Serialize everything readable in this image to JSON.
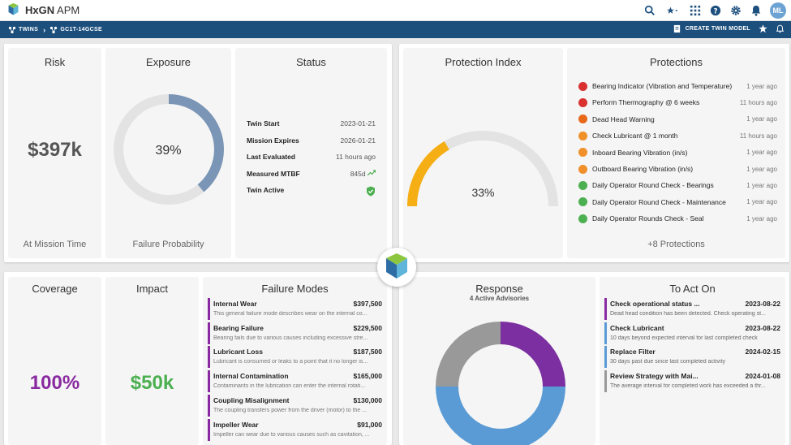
{
  "app": {
    "brand": "HxGN",
    "name": "APM"
  },
  "user": {
    "initials": "ML"
  },
  "breadcrumb": {
    "root": "TWINS",
    "current": "GC1T-14GCSE"
  },
  "nav": {
    "create_twin_model": "CREATE TWIN MODEL"
  },
  "risk": {
    "title": "Risk",
    "value": "$397k",
    "caption": "At Mission Time"
  },
  "exposure": {
    "title": "Exposure",
    "value": "39%",
    "fraction": 0.39,
    "caption": "Failure Probability"
  },
  "status": {
    "title": "Status",
    "rows": [
      {
        "key": "Twin Start",
        "value": "2023-01-21"
      },
      {
        "key": "Mission Expires",
        "value": "2026-01-21"
      },
      {
        "key": "Last Evaluated",
        "value": "11 hours ago"
      },
      {
        "key": "Measured MTBF",
        "value": "845d"
      },
      {
        "key": "Twin Active",
        "value": ""
      }
    ]
  },
  "protection_index": {
    "title": "Protection Index",
    "value": "33%",
    "fraction": 0.33
  },
  "protections": {
    "title": "Protections",
    "items": [
      {
        "name": "Bearing Indicator (Vibration and Temperature)",
        "time": "1 year ago",
        "color": "#d93030"
      },
      {
        "name": "Perform Thermography @ 6 weeks",
        "time": "11 hours ago",
        "color": "#d93030"
      },
      {
        "name": "Dead Head Warning",
        "time": "1 year ago",
        "color": "#e8681a"
      },
      {
        "name": "Check Lubricant @ 1 month",
        "time": "11 hours ago",
        "color": "#f0902a"
      },
      {
        "name": "Inboard Bearing Vibration (in/s)",
        "time": "1 year ago",
        "color": "#f0902a"
      },
      {
        "name": "Outboard Bearing Vibration (in/s)",
        "time": "1 year ago",
        "color": "#f0902a"
      },
      {
        "name": "Daily Operator Round Check - Bearings",
        "time": "1 year ago",
        "color": "#4caf50"
      },
      {
        "name": "Daily Operator Round Check - Maintenance",
        "time": "1 year ago",
        "color": "#4caf50"
      },
      {
        "name": "Daily Operator Rounds Check - Seal",
        "time": "1 year ago",
        "color": "#4caf50"
      }
    ],
    "more": "+8 Protections"
  },
  "coverage": {
    "title": "Coverage",
    "value": "100%"
  },
  "impact": {
    "title": "Impact",
    "value": "$50k"
  },
  "failure_modes": {
    "title": "Failure Modes",
    "items": [
      {
        "name": "Internal Wear",
        "amount": "$397,500",
        "desc": "This general failure mode describes wear on the internal co..."
      },
      {
        "name": "Bearing Failure",
        "amount": "$229,500",
        "desc": "Bearing fails due to various causes including excessive stre..."
      },
      {
        "name": "Lubricant Loss",
        "amount": "$187,500",
        "desc": "Lubricant is consumed or leaks to a point that it no longer is..."
      },
      {
        "name": "Internal Contamination",
        "amount": "$165,000",
        "desc": "Contaminants in the lubrication can enter the internal rotati..."
      },
      {
        "name": "Coupling Misalignment",
        "amount": "$130,000",
        "desc": "The coupling transfers power from the driver (motor) to the ..."
      },
      {
        "name": "Impeller Wear",
        "amount": "$91,000",
        "desc": "Impeller can wear due to various causes such as cavitation, ..."
      }
    ]
  },
  "response": {
    "title": "Response",
    "subtitle": "4 Active Advisories",
    "slices": [
      {
        "value": 25,
        "color": "#7b2fa0"
      },
      {
        "value": 50,
        "color": "#5a9bd5"
      },
      {
        "value": 25,
        "color": "#999999"
      }
    ]
  },
  "to_act_on": {
    "title": "To Act On",
    "items": [
      {
        "name": "Check operational status ...",
        "date": "2023-08-22",
        "desc": "Dead head condition has been detected. Check operating st...",
        "color": "#8a2aa0"
      },
      {
        "name": "Check Lubricant",
        "date": "2023-08-22",
        "desc": "10 days beyond expected interval for last completed check",
        "color": "#5a9bd5"
      },
      {
        "name": "Replace Filter",
        "date": "2024-02-15",
        "desc": "30 days past due since last completed activity",
        "color": "#5a9bd5"
      },
      {
        "name": "Review Strategy with Mai...",
        "date": "2024-01-08",
        "desc": "The average interval for completed work has exceeded a thr...",
        "color": "#999999"
      }
    ]
  },
  "colors": {
    "accent": "#1d4f7d",
    "gauge": "#f5ae14",
    "donut": "#7a95b5",
    "coverage": "#8a2aa0",
    "impact": "#4caf50"
  }
}
